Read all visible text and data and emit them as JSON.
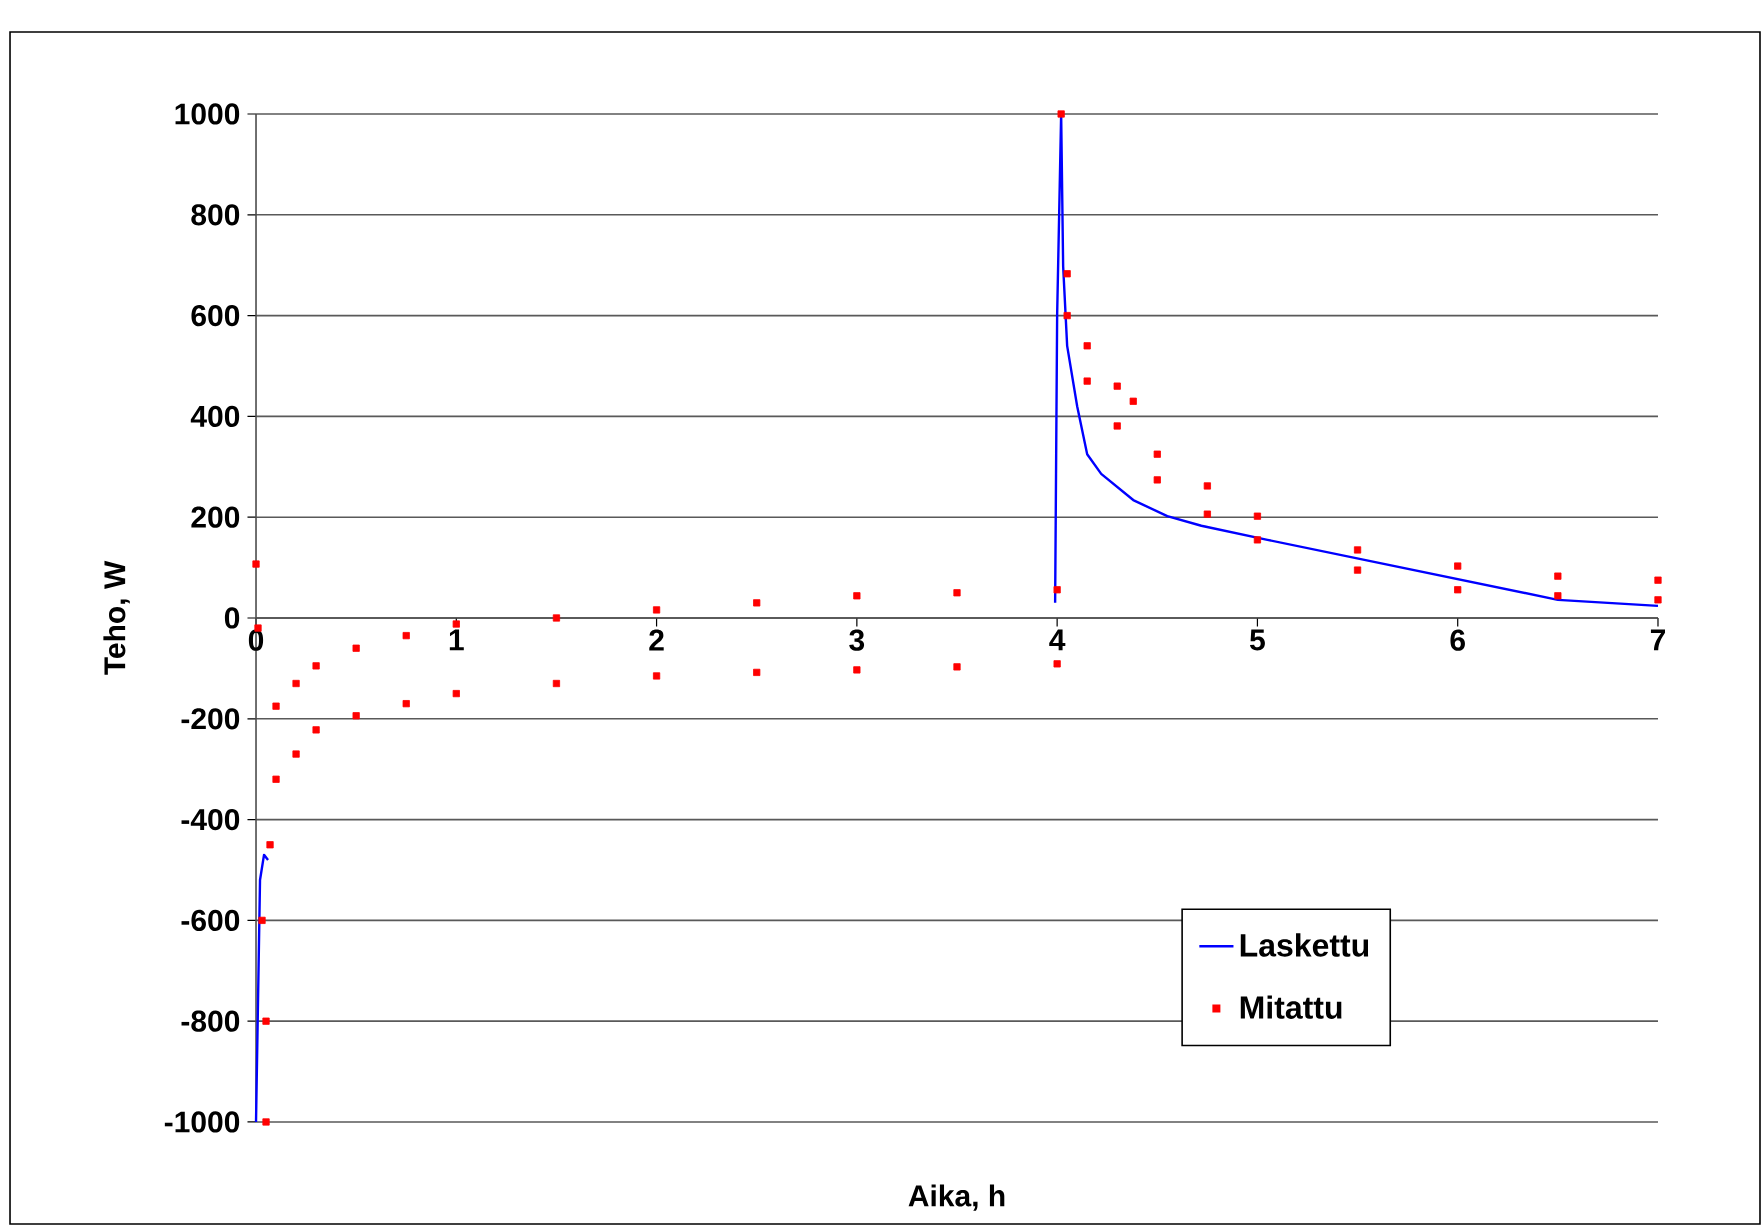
{
  "chart_data": {
    "type": "line",
    "xlabel": "Aika, h",
    "ylabel": "Teho, W",
    "xlim": [
      0,
      7
    ],
    "ylim": [
      -1000,
      1000
    ],
    "xticks": [
      0,
      1,
      2,
      3,
      4,
      5,
      6,
      7
    ],
    "yticks": [
      -1000,
      -800,
      -600,
      -400,
      -200,
      0,
      200,
      400,
      600,
      800,
      1000
    ],
    "grid": "y",
    "legend": "bottom right",
    "series": [
      {
        "name": "Laskettu",
        "color": "#0000ff",
        "x": [
          0,
          0.02,
          0.04,
          0.06,
          0.5,
          3.99,
          4.0,
          4.02,
          4.03,
          4.05,
          4.1,
          4.15,
          4.22,
          4.38,
          4.55,
          4.72,
          5.05,
          6.5,
          7.0
        ],
        "values": [
          -1000,
          -520,
          -470,
          -480,
          null,
          30,
          600,
          1000,
          698,
          540,
          420,
          325,
          286,
          234,
          202,
          183,
          155,
          36,
          24
        ]
      },
      {
        "name": "Mitattu",
        "type": "scatter",
        "marker": "square",
        "color": "#ff0000",
        "x": [
          0,
          0.01,
          0.03,
          0.05,
          0.05,
          0.07,
          0.1,
          0.1,
          0.2,
          0.2,
          0.3,
          0.3,
          0.5,
          0.5,
          0.75,
          0.75,
          1.0,
          1.0,
          1.5,
          1.5,
          2.0,
          2.0,
          2.5,
          2.5,
          3.0,
          3.0,
          3.5,
          3.5,
          4.0,
          4.0,
          4.02,
          4.05,
          4.05,
          4.15,
          4.15,
          4.3,
          4.3,
          4.38,
          4.5,
          4.5,
          4.75,
          4.75,
          5.0,
          5.0,
          5.5,
          5.5,
          6.0,
          6.0,
          6.5,
          6.5,
          7.0,
          7.0
        ],
        "values": [
          107,
          -20,
          -600,
          -1000,
          -800,
          -450,
          -175,
          -320,
          -130,
          -270,
          -95,
          -222,
          -60,
          -194,
          -35,
          -170,
          -12,
          -150,
          0,
          -130,
          16,
          -115,
          30,
          -108,
          44,
          -103,
          50,
          -97,
          56,
          -91,
          1000,
          683,
          600,
          540,
          470,
          460,
          381,
          430,
          325,
          274,
          262,
          206,
          202,
          155,
          135,
          95,
          103,
          56,
          83,
          44,
          75,
          36
        ]
      }
    ]
  }
}
